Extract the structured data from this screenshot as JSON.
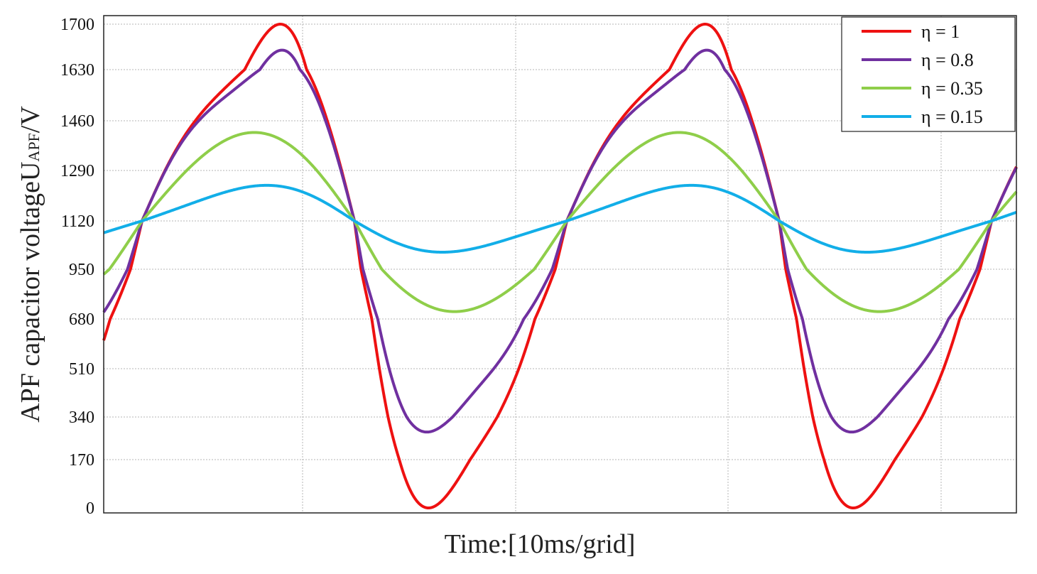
{
  "chart_data": {
    "type": "line",
    "title": "",
    "xlabel": "Time:[10ms/grid]",
    "ylabel": {
      "prefix": "APF capacitor voltage",
      "main": "U",
      "sub": "APF",
      "suffix": "/V"
    },
    "y_ticks": [
      "0",
      "170",
      "340",
      "510",
      "680",
      "950",
      "1120",
      "1290",
      "1460",
      "1630",
      "1700"
    ],
    "x_range_grids": [
      0,
      4.3
    ],
    "grid": true,
    "legend_position": "top-right",
    "series": [
      {
        "name": "η = 1",
        "color": "#ee1111",
        "mean": 1120,
        "amp1": 520,
        "amp2": 90,
        "amp3": 45,
        "peak": 1700,
        "trough": 0
      },
      {
        "name": "η = 0.8",
        "color": "#7030a0",
        "mean": 1120,
        "amp1": 450,
        "amp2": 75,
        "amp3": 45,
        "peak": 1660,
        "trough": 280
      },
      {
        "name": "η = 0.35",
        "color": "#8fce4a",
        "mean": 1120,
        "amp1": 330,
        "amp2": 15,
        "amp3": 0,
        "peak": 1420,
        "trough": 720
      },
      {
        "name": "η = 0.15",
        "color": "#12aee8",
        "mean": 1120,
        "amp1": 115,
        "amp2": 18,
        "amp3": 0,
        "peak": 1240,
        "trough": 1010
      }
    ]
  }
}
